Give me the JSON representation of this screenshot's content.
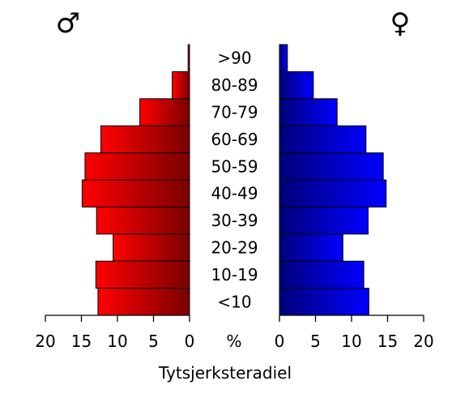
{
  "chart_data": {
    "type": "bar",
    "orientation": "horizontal",
    "title": "",
    "caption": "Tytsjerksteradiel",
    "unit_label": "%",
    "male_symbol": "♂",
    "female_symbol": "♀",
    "categories": [
      ">90",
      "80-89",
      "70-79",
      "60-69",
      "50-59",
      "40-49",
      "30-39",
      "20-29",
      "10-19",
      "<10"
    ],
    "xlim": [
      0,
      20
    ],
    "ticks": [
      0,
      5,
      10,
      15,
      20
    ],
    "tick_labels": [
      "0",
      "5",
      "10",
      "15",
      "20"
    ],
    "series": [
      {
        "name": "male",
        "side": "left",
        "color_light": "#ff0000",
        "color_dark": "#7a0000",
        "values": [
          0.2,
          2.4,
          6.9,
          12.3,
          14.5,
          14.9,
          12.9,
          10.6,
          13.0,
          12.7
        ]
      },
      {
        "name": "female",
        "side": "right",
        "color_light": "#0000ff",
        "color_dark": "#00007a",
        "values": [
          1.1,
          4.7,
          8.0,
          12.0,
          14.4,
          14.8,
          12.3,
          8.8,
          11.7,
          12.4
        ]
      }
    ]
  }
}
